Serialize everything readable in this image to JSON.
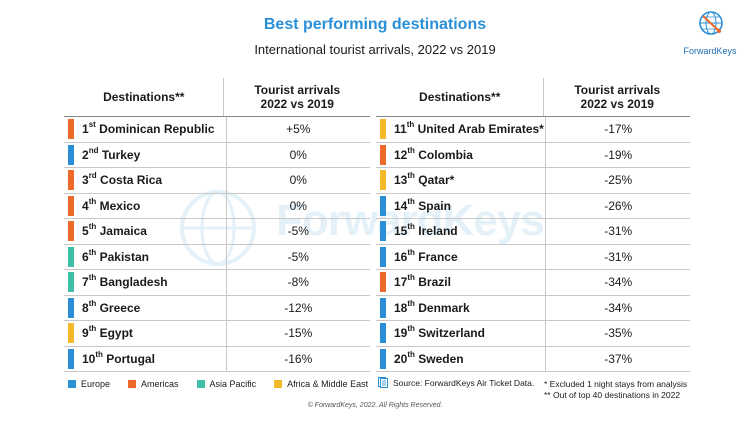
{
  "title": "Best performing destinations",
  "subtitle": "International tourist arrivals, 2022 vs 2019",
  "logo_text": "ForwardKeys",
  "watermark_text": "ForwardKeys",
  "region_colors": {
    "europe": "#2a8fd6",
    "americas": "#ee6a2b",
    "asia_pacific": "#3fbfa8",
    "africa_middle_east": "#f5b829"
  },
  "headers": {
    "destinations": "Destinations**",
    "arrivals_line1": "Tourist arrivals",
    "arrivals_line2": "2022 vs 2019"
  },
  "left_rows": [
    {
      "rank": "1",
      "suffix": "st",
      "name": "Dominican Republic",
      "value": "+5%",
      "region": "americas"
    },
    {
      "rank": "2",
      "suffix": "nd",
      "name": "Turkey",
      "value": "0%",
      "region": "europe"
    },
    {
      "rank": "3",
      "suffix": "rd",
      "name": "Costa Rica",
      "value": "0%",
      "region": "americas"
    },
    {
      "rank": "4",
      "suffix": "th",
      "name": "Mexico",
      "value": "0%",
      "region": "americas"
    },
    {
      "rank": "5",
      "suffix": "th",
      "name": "Jamaica",
      "value": "-5%",
      "region": "americas"
    },
    {
      "rank": "6",
      "suffix": "th",
      "name": "Pakistan",
      "value": "-5%",
      "region": "asia_pacific"
    },
    {
      "rank": "7",
      "suffix": "th",
      "name": "Bangladesh",
      "value": "-8%",
      "region": "asia_pacific"
    },
    {
      "rank": "8",
      "suffix": "th",
      "name": "Greece",
      "value": "-12%",
      "region": "europe"
    },
    {
      "rank": "9",
      "suffix": "th",
      "name": "Egypt",
      "value": "-15%",
      "region": "africa_middle_east"
    },
    {
      "rank": "10",
      "suffix": "th",
      "name": "Portugal",
      "value": "-16%",
      "region": "europe"
    }
  ],
  "right_rows": [
    {
      "rank": "11",
      "suffix": "th",
      "name": "United Arab Emirates*",
      "value": "-17%",
      "region": "africa_middle_east"
    },
    {
      "rank": "12",
      "suffix": "th",
      "name": "Colombia",
      "value": "-19%",
      "region": "americas"
    },
    {
      "rank": "13",
      "suffix": "th",
      "name": "Qatar*",
      "value": "-25%",
      "region": "africa_middle_east"
    },
    {
      "rank": "14",
      "suffix": "th",
      "name": "Spain",
      "value": "-26%",
      "region": "europe"
    },
    {
      "rank": "15",
      "suffix": "th",
      "name": "Ireland",
      "value": "-31%",
      "region": "europe"
    },
    {
      "rank": "16",
      "suffix": "th",
      "name": "France",
      "value": "-31%",
      "region": "europe"
    },
    {
      "rank": "17",
      "suffix": "th",
      "name": "Brazil",
      "value": "-34%",
      "region": "americas"
    },
    {
      "rank": "18",
      "suffix": "th",
      "name": "Denmark",
      "value": "-34%",
      "region": "europe"
    },
    {
      "rank": "19",
      "suffix": "th",
      "name": "Switzerland",
      "value": "-35%",
      "region": "europe"
    },
    {
      "rank": "20",
      "suffix": "th",
      "name": "Sweden",
      "value": "-37%",
      "region": "europe"
    }
  ],
  "legend": [
    {
      "label": "Europe",
      "region": "europe"
    },
    {
      "label": "Americas",
      "region": "americas"
    },
    {
      "label": "Asia Pacific",
      "region": "asia_pacific"
    },
    {
      "label": "Africa & Middle East",
      "region": "africa_middle_east"
    }
  ],
  "source": "Source: ForwardKeys Air Ticket Data.",
  "notes": [
    "* Excluded 1 night stays from analysis",
    "** Out of top 40 destinations in 2022"
  ],
  "copyright": "© ForwardKeys, 2022. All Rights Reserved.",
  "icons": {
    "logo": "globe-logo-icon",
    "source": "document-icon"
  }
}
